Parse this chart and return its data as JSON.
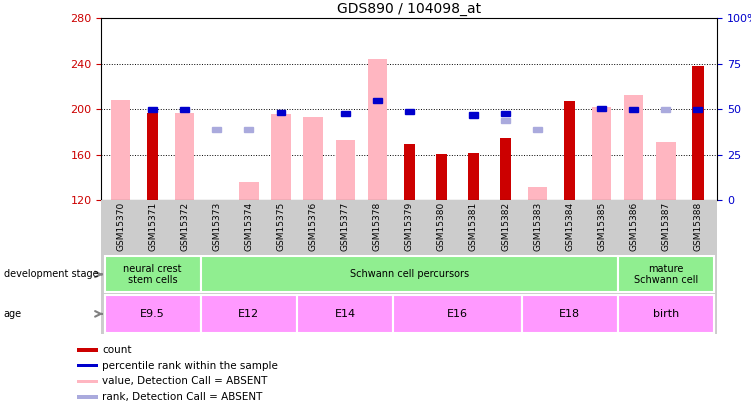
{
  "title": "GDS890 / 104098_at",
  "samples": [
    "GSM15370",
    "GSM15371",
    "GSM15372",
    "GSM15373",
    "GSM15374",
    "GSM15375",
    "GSM15376",
    "GSM15377",
    "GSM15378",
    "GSM15379",
    "GSM15380",
    "GSM15381",
    "GSM15382",
    "GSM15383",
    "GSM15384",
    "GSM15385",
    "GSM15386",
    "GSM15387",
    "GSM15388"
  ],
  "ylim_left": [
    120,
    280
  ],
  "ylim_right": [
    0,
    100
  ],
  "yticks_left": [
    120,
    160,
    200,
    240,
    280
  ],
  "yticks_right": [
    0,
    25,
    50,
    75,
    100
  ],
  "yticklabels_right": [
    "0",
    "25",
    "50",
    "75",
    "100%"
  ],
  "red_bars": {
    "GSM15371": 197,
    "GSM15379": 170,
    "GSM15380": 161,
    "GSM15381": 162,
    "GSM15382": 175,
    "GSM15384": 207,
    "GSM15388": 238
  },
  "pink_bars": {
    "GSM15370": 208,
    "GSM15372": 197,
    "GSM15374": 136,
    "GSM15375": 196,
    "GSM15376": 193,
    "GSM15377": 173,
    "GSM15378": 244,
    "GSM15383": 132,
    "GSM15385": 202,
    "GSM15386": 213,
    "GSM15387": 171
  },
  "blue_squares": {
    "GSM15371": 200,
    "GSM15372": 200,
    "GSM15375": 197,
    "GSM15377": 196,
    "GSM15378": 208,
    "GSM15379": 198,
    "GSM15381": 195,
    "GSM15382": 196,
    "GSM15385": 201,
    "GSM15386": 200,
    "GSM15388": 200
  },
  "light_blue_squares": {
    "GSM15373": 182,
    "GSM15374": 182,
    "GSM15382": 190,
    "GSM15383": 182,
    "GSM15387": 200
  },
  "dev_groups": [
    {
      "label": "neural crest\nstem cells",
      "start": 0,
      "end": 2,
      "color": "#90EE90"
    },
    {
      "label": "Schwann cell percursors",
      "start": 3,
      "end": 15,
      "color": "#90EE90"
    },
    {
      "label": "mature\nSchwann cell",
      "start": 16,
      "end": 18,
      "color": "#90EE90"
    }
  ],
  "age_groups": [
    {
      "label": "E9.5",
      "start": 0,
      "end": 2,
      "color": "#FF99FF"
    },
    {
      "label": "E12",
      "start": 3,
      "end": 5,
      "color": "#FF99FF"
    },
    {
      "label": "E14",
      "start": 6,
      "end": 8,
      "color": "#FF99FF"
    },
    {
      "label": "E16",
      "start": 9,
      "end": 12,
      "color": "#FF99FF"
    },
    {
      "label": "E18",
      "start": 13,
      "end": 15,
      "color": "#FF99FF"
    },
    {
      "label": "birth",
      "start": 16,
      "end": 18,
      "color": "#FF99FF"
    }
  ],
  "red_color": "#CC0000",
  "pink_color": "#FFB6C1",
  "blue_color": "#0000CC",
  "light_blue_color": "#AAAADD",
  "gray_bg": "#CCCCCC",
  "tick_color_left": "#CC0000",
  "tick_color_right": "#0000CC",
  "legend_items": [
    {
      "color": "#CC0000",
      "label": "count"
    },
    {
      "color": "#0000CC",
      "label": "percentile rank within the sample"
    },
    {
      "color": "#FFB6C1",
      "label": "value, Detection Call = ABSENT"
    },
    {
      "color": "#AAAADD",
      "label": "rank, Detection Call = ABSENT"
    }
  ]
}
